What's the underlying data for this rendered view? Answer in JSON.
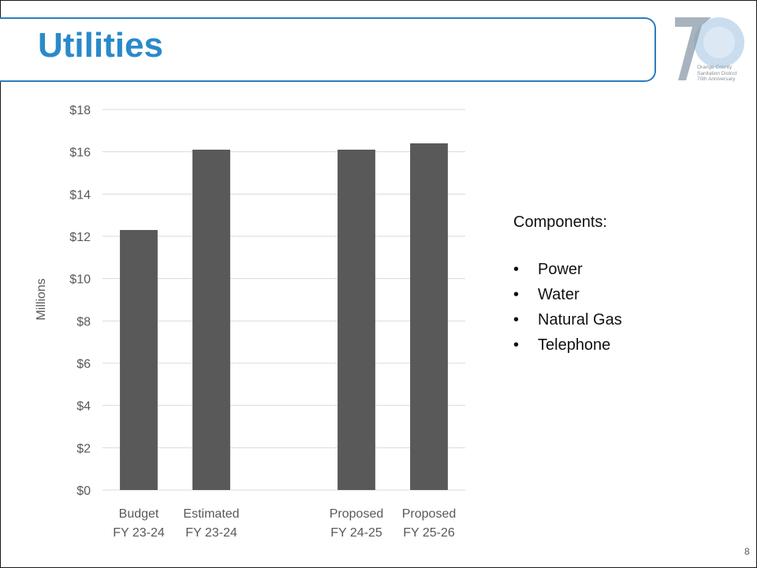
{
  "slide": {
    "title": "Utilities",
    "page_number": "8"
  },
  "logo": {
    "icon": "70th-anniversary-logo-icon",
    "text_lines": [
      "Orange County",
      "Sanitation District",
      "70th Anniversary"
    ]
  },
  "components": {
    "heading": "Components:",
    "bullet": "•",
    "items": [
      "Power",
      "Water",
      "Natural Gas",
      "Telephone"
    ]
  },
  "colors": {
    "title": "#2a8ac9",
    "banner_border": "#2b7dc0",
    "bar": "#595959",
    "grid": "#d9d9d9",
    "axis_text": "#595959"
  },
  "chart_data": {
    "type": "bar",
    "ylabel": "Millions",
    "xlabel": "",
    "ylim": [
      0,
      18
    ],
    "ytick_step": 2,
    "ytick_labels": [
      "$0",
      "$2",
      "$4",
      "$6",
      "$8",
      "$10",
      "$12",
      "$14",
      "$16",
      "$18"
    ],
    "grid": true,
    "legend": "none",
    "categories": [
      {
        "label": [
          "Budget",
          "FY 23-24"
        ],
        "value": 12.3
      },
      {
        "label": [
          "Estimated",
          "FY 23-24"
        ],
        "value": 16.1
      },
      {
        "label": [
          "",
          ""
        ],
        "value": null
      },
      {
        "label": [
          "Proposed",
          "FY 24-25"
        ],
        "value": 16.1
      },
      {
        "label": [
          "Proposed",
          "FY 25-26"
        ],
        "value": 16.4
      }
    ]
  }
}
